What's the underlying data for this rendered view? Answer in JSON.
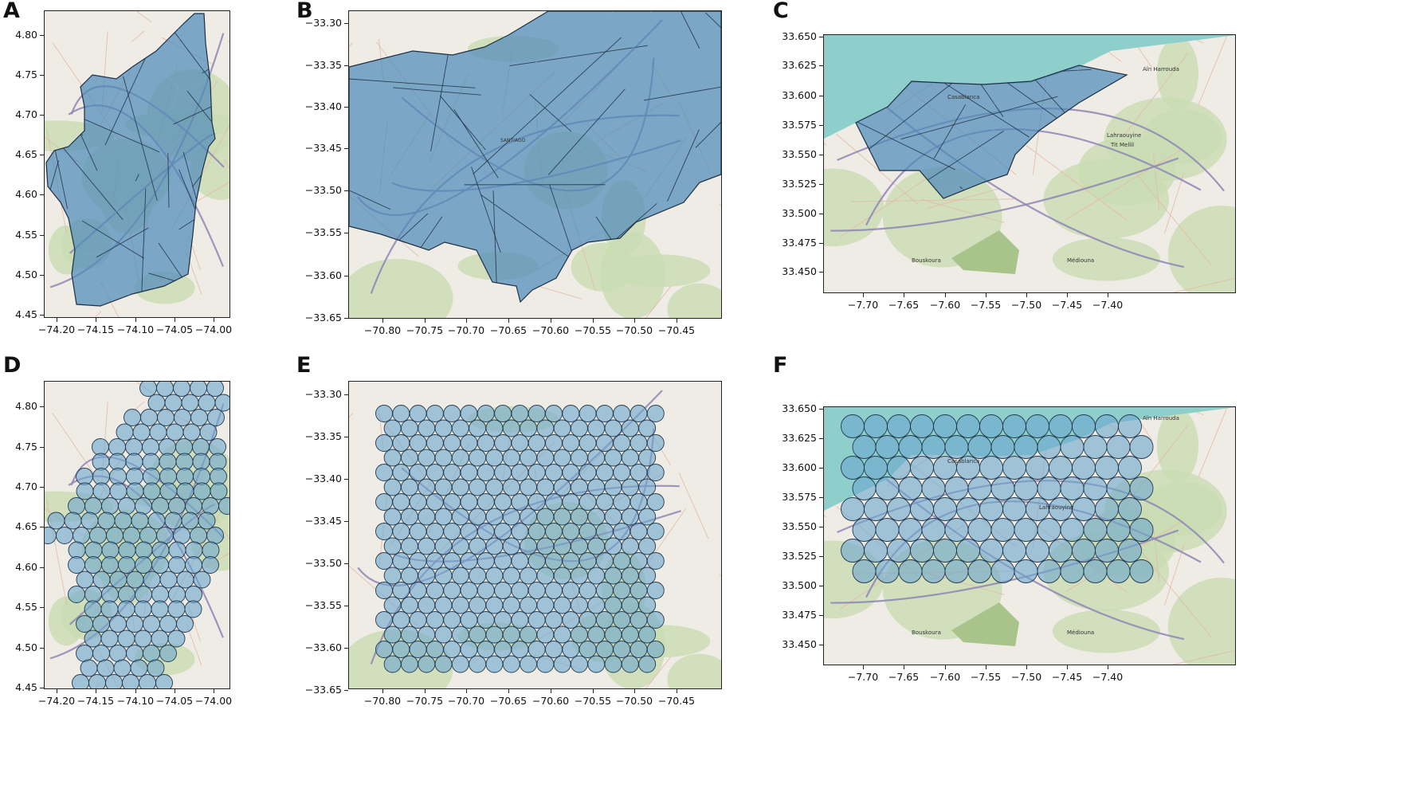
{
  "panels": [
    {
      "id": "A",
      "letter": "A",
      "map": "polygons",
      "colors": {
        "base": "#eeece4",
        "fill": "#4f8bb8",
        "edge": "#1e2f44"
      },
      "x_ticks": [
        "−74.20",
        "−74.15",
        "−74.10",
        "−74.05",
        "−74.00"
      ],
      "y_ticks": [
        "4.80",
        "4.75",
        "4.70",
        "4.65",
        "4.60",
        "4.55",
        "4.50",
        "4.45"
      ]
    },
    {
      "id": "B",
      "letter": "B",
      "map": "polygons",
      "colors": {
        "base": "#eeece4",
        "fill": "#4f8bb8",
        "edge": "#1e2f44"
      },
      "labels": [
        "SANTIAGO"
      ],
      "x_ticks": [
        "−70.80",
        "−70.75",
        "−70.70",
        "−70.65",
        "−70.60",
        "−70.55",
        "−70.50",
        "−70.45"
      ],
      "y_ticks": [
        "−33.30",
        "−33.35",
        "−33.40",
        "−33.45",
        "−33.50",
        "−33.55",
        "−33.60",
        "−33.65"
      ]
    },
    {
      "id": "C",
      "letter": "C",
      "map": "polygons",
      "colors": {
        "base": "#eeece4",
        "sea": "#8ecfcc",
        "fill": "#4f8bb8",
        "edge": "#1e2f44"
      },
      "labels": [
        "Aïn Harrouda",
        "Casablanca",
        "Lahraouyine",
        "Tit Mellil",
        "Bouskoura",
        "Médiouna"
      ],
      "x_ticks": [
        "−7.70",
        "−7.65",
        "−7.60",
        "−7.55",
        "−7.50",
        "−7.45",
        "−7.40"
      ],
      "y_ticks": [
        "33.650",
        "33.625",
        "33.600",
        "33.575",
        "33.550",
        "33.525",
        "33.500",
        "33.475",
        "33.450"
      ]
    },
    {
      "id": "D",
      "letter": "D",
      "map": "circles",
      "colors": {
        "base": "#eeece4",
        "fill": "#6aa6cf",
        "edge": "#243a4f"
      },
      "x_ticks": [
        "−74.20",
        "−74.15",
        "−74.10",
        "−74.05",
        "−74.00"
      ],
      "y_ticks": [
        "4.80",
        "4.75",
        "4.70",
        "4.65",
        "4.60",
        "4.55",
        "4.50",
        "4.45"
      ]
    },
    {
      "id": "E",
      "letter": "E",
      "map": "circles",
      "colors": {
        "base": "#eeece4",
        "fill": "#6aa6cf",
        "edge": "#243a4f"
      },
      "x_ticks": [
        "−70.80",
        "−70.75",
        "−70.70",
        "−70.65",
        "−70.60",
        "−70.55",
        "−70.50",
        "−70.45"
      ],
      "y_ticks": [
        "−33.30",
        "−33.35",
        "−33.40",
        "−33.45",
        "−33.50",
        "−33.55",
        "−33.60",
        "−33.65"
      ]
    },
    {
      "id": "F",
      "letter": "F",
      "map": "circles",
      "colors": {
        "base": "#eeece4",
        "sea": "#8ecfcc",
        "fill": "#6aa6cf",
        "edge": "#243a4f"
      },
      "labels": [
        "Aïn Harrouda",
        "Casablanca",
        "Lahraouyine",
        "Bouskoura",
        "Médiouna"
      ],
      "x_ticks": [
        "−7.70",
        "−7.65",
        "−7.60",
        "−7.55",
        "−7.50",
        "−7.45",
        "−7.40"
      ],
      "y_ticks": [
        "33.650",
        "33.625",
        "33.600",
        "33.575",
        "33.550",
        "33.525",
        "33.500",
        "33.475",
        "33.450"
      ]
    }
  ]
}
